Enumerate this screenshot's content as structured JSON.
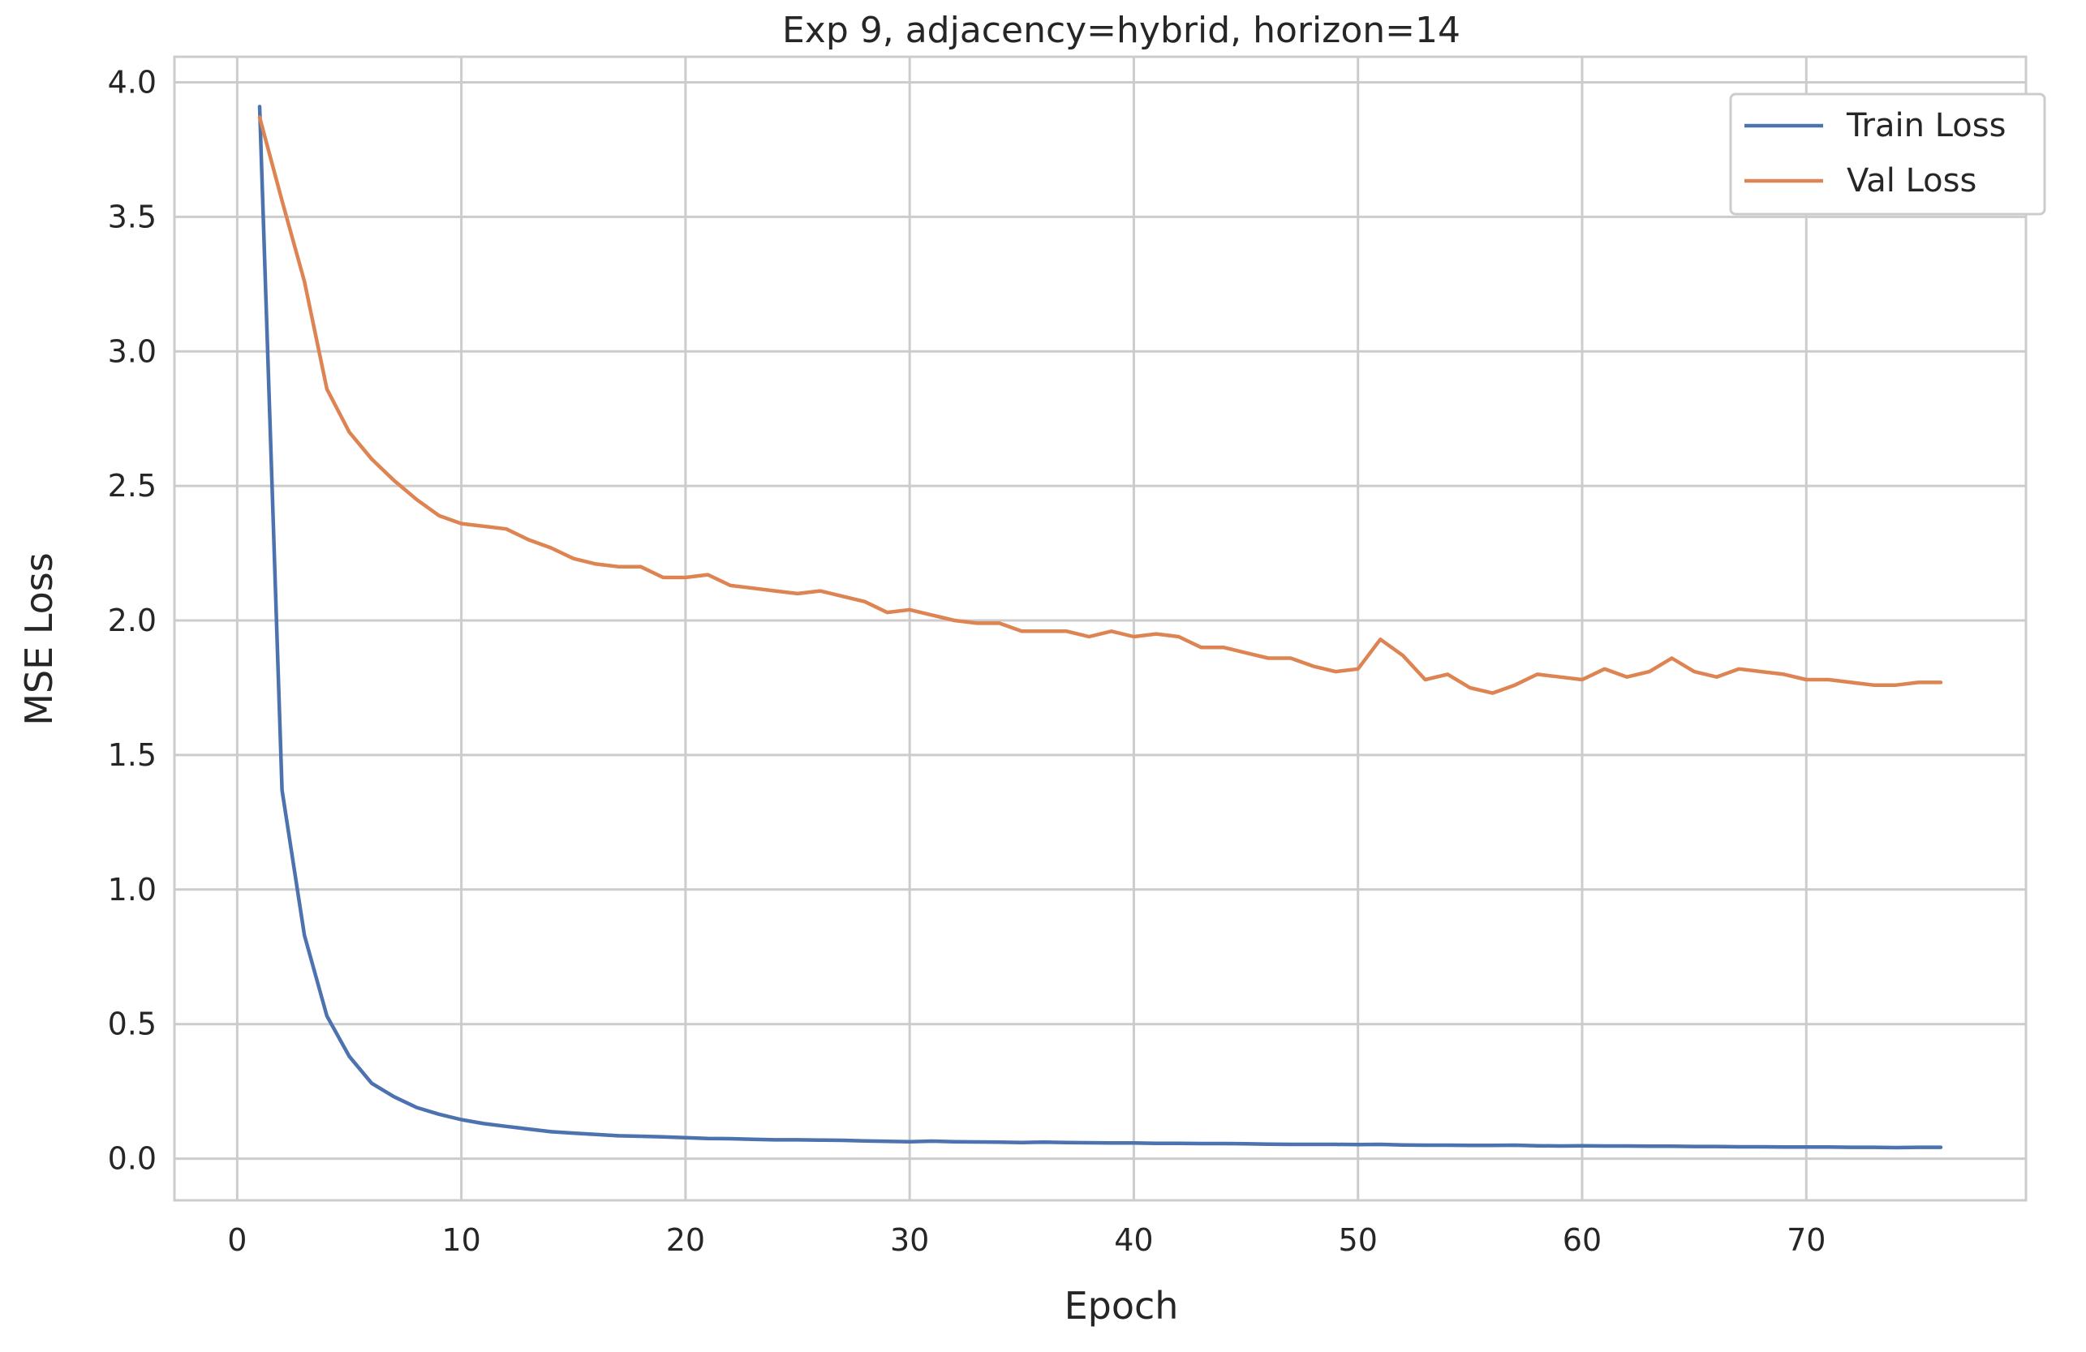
{
  "chart_data": {
    "type": "line",
    "title": "Exp 9, adjacency=hybrid, horizon=14",
    "xlabel": "Epoch",
    "ylabel": "MSE Loss",
    "xlim": [
      -2.8,
      79.8
    ],
    "ylim": [
      -0.155,
      4.095
    ],
    "xticks": [
      0,
      10,
      20,
      30,
      40,
      50,
      60,
      70
    ],
    "xtick_labels": [
      "0",
      "10",
      "20",
      "30",
      "40",
      "50",
      "60",
      "70"
    ],
    "yticks": [
      0.0,
      0.5,
      1.0,
      1.5,
      2.0,
      2.5,
      3.0,
      3.5,
      4.0
    ],
    "ytick_labels": [
      "0.0",
      "0.5",
      "1.0",
      "1.5",
      "2.0",
      "2.5",
      "3.0",
      "3.5",
      "4.0"
    ],
    "grid": true,
    "legend_position": "top-right",
    "x": [
      1,
      2,
      3,
      4,
      5,
      6,
      7,
      8,
      9,
      10,
      11,
      12,
      13,
      14,
      15,
      16,
      17,
      18,
      19,
      20,
      21,
      22,
      23,
      24,
      25,
      26,
      27,
      28,
      29,
      30,
      31,
      32,
      33,
      34,
      35,
      36,
      37,
      38,
      39,
      40,
      41,
      42,
      43,
      44,
      45,
      46,
      47,
      48,
      49,
      50,
      51,
      52,
      53,
      54,
      55,
      56,
      57,
      58,
      59,
      60,
      61,
      62,
      63,
      64,
      65,
      66,
      67,
      68,
      69,
      70,
      71,
      72,
      73,
      74,
      75,
      76
    ],
    "series": [
      {
        "name": "Train Loss",
        "color": "#4c72b0",
        "values": [
          3.91,
          1.37,
          0.83,
          0.53,
          0.38,
          0.28,
          0.23,
          0.19,
          0.165,
          0.145,
          0.13,
          0.12,
          0.11,
          0.1,
          0.095,
          0.09,
          0.085,
          0.083,
          0.081,
          0.078,
          0.075,
          0.074,
          0.072,
          0.07,
          0.07,
          0.069,
          0.068,
          0.066,
          0.064,
          0.063,
          0.065,
          0.063,
          0.062,
          0.061,
          0.06,
          0.061,
          0.06,
          0.059,
          0.058,
          0.058,
          0.057,
          0.057,
          0.056,
          0.056,
          0.055,
          0.054,
          0.053,
          0.053,
          0.053,
          0.052,
          0.053,
          0.051,
          0.05,
          0.05,
          0.049,
          0.049,
          0.05,
          0.048,
          0.047,
          0.048,
          0.047,
          0.047,
          0.046,
          0.046,
          0.045,
          0.045,
          0.044,
          0.044,
          0.043,
          0.043,
          0.043,
          0.042,
          0.042,
          0.041,
          0.042,
          0.042
        ]
      },
      {
        "name": "Val Loss",
        "color": "#dd8452",
        "values": [
          3.87,
          3.56,
          3.26,
          2.86,
          2.7,
          2.6,
          2.52,
          2.45,
          2.39,
          2.36,
          2.35,
          2.34,
          2.3,
          2.27,
          2.23,
          2.21,
          2.2,
          2.2,
          2.16,
          2.16,
          2.17,
          2.13,
          2.12,
          2.11,
          2.1,
          2.11,
          2.09,
          2.07,
          2.03,
          2.04,
          2.02,
          2.0,
          1.99,
          1.99,
          1.96,
          1.96,
          1.96,
          1.94,
          1.96,
          1.94,
          1.95,
          1.94,
          1.9,
          1.9,
          1.88,
          1.86,
          1.86,
          1.83,
          1.81,
          1.82,
          1.93,
          1.87,
          1.78,
          1.8,
          1.75,
          1.73,
          1.76,
          1.8,
          1.79,
          1.78,
          1.82,
          1.79,
          1.81,
          1.86,
          1.81,
          1.79,
          1.82,
          1.81,
          1.8,
          1.78,
          1.78,
          1.77,
          1.76,
          1.76,
          1.77,
          1.77
        ]
      }
    ]
  }
}
